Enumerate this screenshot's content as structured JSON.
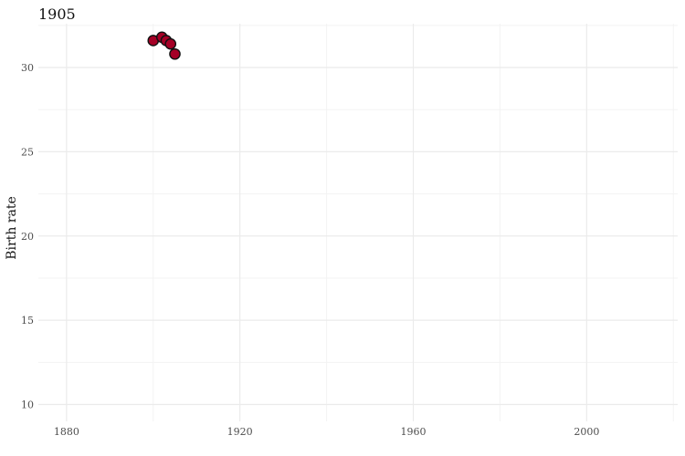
{
  "chart_data": {
    "type": "scatter",
    "title": "1905",
    "xlabel": "",
    "ylabel": "Birth rate",
    "xlim": [
      1873.5,
      2021
    ],
    "ylim": [
      9,
      32.6
    ],
    "x_ticks": [
      1880,
      1920,
      1960,
      2000
    ],
    "y_ticks": [
      10,
      15,
      20,
      25,
      30
    ],
    "grid": true,
    "legend": "none",
    "series": [
      {
        "points": [
          {
            "x": 1900,
            "y": 31.6
          },
          {
            "x": 1902,
            "y": 31.8
          },
          {
            "x": 1903,
            "y": 31.6
          },
          {
            "x": 1904,
            "y": 31.4
          },
          {
            "x": 1905,
            "y": 30.8
          }
        ]
      }
    ],
    "colors": {
      "point_fill": "#a50026",
      "point_stroke": "#111111",
      "major_grid": "#ebebeb",
      "minor_grid": "#f3f3f3"
    }
  }
}
